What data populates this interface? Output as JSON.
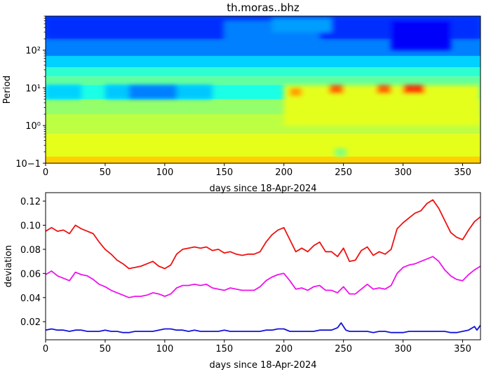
{
  "figure": {
    "title": "th.moras..bhz"
  },
  "chart_data": [
    {
      "type": "heatmap",
      "title": "th.moras..bhz",
      "xlabel": "days since 18-Apr-2024",
      "ylabel": "Period",
      "xlim": [
        0,
        365
      ],
      "ylim": [
        0.1,
        800
      ],
      "yscale": "log",
      "xticks": [
        0,
        50,
        100,
        150,
        200,
        250,
        300,
        350
      ],
      "xtick_labels": [
        "0",
        "50",
        "100",
        "150",
        "200",
        "250",
        "300",
        "350"
      ],
      "yticks": [
        0.1,
        1,
        10,
        100
      ],
      "ytick_labels": [
        "10−1",
        "10⁰",
        "10¹",
        "10²"
      ],
      "colormap": "jet",
      "bands": [
        {
          "period": [
            200,
            800
          ],
          "value": 0.2
        },
        {
          "period": [
            70,
            200
          ],
          "value": 0.25
        },
        {
          "period": [
            35,
            70
          ],
          "value": 0.33
        },
        {
          "period": [
            20,
            35
          ],
          "value": 0.42
        },
        {
          "period": [
            12,
            20
          ],
          "value": 0.47
        },
        {
          "period": [
            5,
            12
          ],
          "value": 0.4
        },
        {
          "period": [
            2,
            5
          ],
          "value": 0.52
        },
        {
          "period": [
            0.6,
            2
          ],
          "value": 0.56
        },
        {
          "period": [
            0.15,
            0.6
          ],
          "value": 0.6
        },
        {
          "period": [
            0.1,
            0.15
          ],
          "value": 0.67
        }
      ],
      "patches": [
        {
          "x": [
            0,
            365
          ],
          "period": [
            200,
            800
          ],
          "value": 0.17
        },
        {
          "x": [
            150,
            230
          ],
          "period": [
            100,
            600
          ],
          "value": 0.25
        },
        {
          "x": [
            290,
            340
          ],
          "period": [
            100,
            600
          ],
          "value": 0.12
        },
        {
          "x": [
            190,
            240
          ],
          "period": [
            300,
            700
          ],
          "value": 0.28
        },
        {
          "x": [
            50,
            140
          ],
          "period": [
            5,
            12
          ],
          "value": 0.32
        },
        {
          "x": [
            70,
            110
          ],
          "period": [
            5,
            12
          ],
          "value": 0.25
        },
        {
          "x": [
            0,
            30
          ],
          "period": [
            5,
            12
          ],
          "value": 0.33
        },
        {
          "x": [
            200,
            320
          ],
          "period": [
            5,
            12
          ],
          "value": 0.6
        },
        {
          "x": [
            200,
            365
          ],
          "period": [
            1,
            12
          ],
          "value": 0.6
        },
        {
          "x": [
            205,
            215
          ],
          "period": [
            6,
            10
          ],
          "value": 0.72
        },
        {
          "x": [
            238,
            250
          ],
          "period": [
            7,
            12
          ],
          "value": 0.78
        },
        {
          "x": [
            278,
            290
          ],
          "period": [
            7,
            12
          ],
          "value": 0.78
        },
        {
          "x": [
            300,
            318
          ],
          "period": [
            7,
            12
          ],
          "value": 0.82
        },
        {
          "x": [
            243,
            252
          ],
          "period": [
            0.15,
            0.25
          ],
          "value": 0.5
        }
      ]
    },
    {
      "type": "line",
      "xlabel": "days since 18-Apr-2024",
      "ylabel": "deviation",
      "xlim": [
        0,
        365
      ],
      "ylim": [
        0.005,
        0.127
      ],
      "xticks": [
        0,
        50,
        100,
        150,
        200,
        250,
        300,
        350
      ],
      "xtick_labels": [
        "0",
        "50",
        "100",
        "150",
        "200",
        "250",
        "300",
        "350"
      ],
      "yticks": [
        0.02,
        0.04,
        0.06,
        0.08,
        0.1,
        0.12
      ],
      "ytick_labels": [
        "0.02",
        "0.04",
        "0.06",
        "0.08",
        "0.10",
        "0.12"
      ],
      "series": [
        {
          "color": "#ee1111",
          "x": [
            0,
            5,
            10,
            15,
            20,
            25,
            30,
            35,
            40,
            45,
            50,
            55,
            60,
            65,
            70,
            75,
            80,
            85,
            90,
            95,
            100,
            105,
            110,
            115,
            120,
            125,
            130,
            135,
            140,
            145,
            150,
            155,
            160,
            165,
            170,
            175,
            180,
            185,
            190,
            195,
            200,
            205,
            210,
            215,
            220,
            225,
            230,
            235,
            240,
            245,
            250,
            255,
            260,
            265,
            270,
            275,
            280,
            285,
            290,
            295,
            300,
            305,
            310,
            315,
            320,
            325,
            330,
            335,
            340,
            345,
            350,
            355,
            360,
            365
          ],
          "y": [
            0.095,
            0.098,
            0.095,
            0.096,
            0.093,
            0.1,
            0.097,
            0.095,
            0.093,
            0.086,
            0.08,
            0.076,
            0.071,
            0.068,
            0.064,
            0.065,
            0.066,
            0.068,
            0.07,
            0.066,
            0.064,
            0.067,
            0.076,
            0.08,
            0.081,
            0.082,
            0.081,
            0.082,
            0.079,
            0.08,
            0.077,
            0.078,
            0.076,
            0.075,
            0.076,
            0.076,
            0.078,
            0.086,
            0.092,
            0.096,
            0.098,
            0.088,
            0.078,
            0.081,
            0.078,
            0.083,
            0.086,
            0.078,
            0.078,
            0.074,
            0.081,
            0.07,
            0.071,
            0.079,
            0.082,
            0.075,
            0.078,
            0.076,
            0.08,
            0.097,
            0.102,
            0.106,
            0.11,
            0.112,
            0.118,
            0.121,
            0.114,
            0.104,
            0.094,
            0.09,
            0.088,
            0.096,
            0.103,
            0.107
          ]
        },
        {
          "color": "#ee11ee",
          "x": [
            0,
            5,
            10,
            15,
            20,
            25,
            30,
            35,
            40,
            45,
            50,
            55,
            60,
            65,
            70,
            75,
            80,
            85,
            90,
            95,
            100,
            105,
            110,
            115,
            120,
            125,
            130,
            135,
            140,
            145,
            150,
            155,
            160,
            165,
            170,
            175,
            180,
            185,
            190,
            195,
            200,
            205,
            210,
            215,
            220,
            225,
            230,
            235,
            240,
            245,
            250,
            255,
            260,
            265,
            270,
            275,
            280,
            285,
            290,
            295,
            300,
            305,
            310,
            315,
            320,
            325,
            330,
            335,
            340,
            345,
            350,
            355,
            360,
            365
          ],
          "y": [
            0.059,
            0.062,
            0.058,
            0.056,
            0.054,
            0.061,
            0.059,
            0.058,
            0.055,
            0.051,
            0.049,
            0.046,
            0.044,
            0.042,
            0.04,
            0.041,
            0.041,
            0.042,
            0.044,
            0.043,
            0.041,
            0.043,
            0.048,
            0.05,
            0.05,
            0.051,
            0.05,
            0.051,
            0.048,
            0.047,
            0.046,
            0.048,
            0.047,
            0.046,
            0.046,
            0.046,
            0.049,
            0.054,
            0.057,
            0.059,
            0.06,
            0.054,
            0.047,
            0.048,
            0.046,
            0.049,
            0.05,
            0.046,
            0.046,
            0.044,
            0.049,
            0.043,
            0.043,
            0.047,
            0.051,
            0.047,
            0.048,
            0.047,
            0.05,
            0.06,
            0.065,
            0.067,
            0.068,
            0.07,
            0.072,
            0.074,
            0.07,
            0.063,
            0.058,
            0.055,
            0.054,
            0.059,
            0.063,
            0.066
          ]
        },
        {
          "color": "#1111dd",
          "x": [
            0,
            5,
            10,
            15,
            20,
            25,
            30,
            35,
            40,
            45,
            50,
            55,
            60,
            65,
            70,
            75,
            80,
            85,
            90,
            95,
            100,
            105,
            110,
            115,
            120,
            125,
            130,
            135,
            140,
            145,
            150,
            155,
            160,
            165,
            170,
            175,
            180,
            185,
            190,
            195,
            200,
            205,
            210,
            215,
            220,
            225,
            230,
            235,
            240,
            245,
            248,
            252,
            255,
            260,
            265,
            270,
            275,
            280,
            285,
            290,
            295,
            300,
            305,
            310,
            315,
            320,
            325,
            330,
            335,
            340,
            345,
            350,
            355,
            360,
            362,
            365
          ],
          "y": [
            0.013,
            0.014,
            0.013,
            0.013,
            0.012,
            0.013,
            0.013,
            0.012,
            0.012,
            0.012,
            0.013,
            0.012,
            0.012,
            0.011,
            0.011,
            0.012,
            0.012,
            0.012,
            0.012,
            0.013,
            0.014,
            0.014,
            0.013,
            0.013,
            0.012,
            0.013,
            0.012,
            0.012,
            0.012,
            0.012,
            0.013,
            0.012,
            0.012,
            0.012,
            0.012,
            0.012,
            0.012,
            0.013,
            0.013,
            0.014,
            0.014,
            0.012,
            0.012,
            0.012,
            0.012,
            0.012,
            0.013,
            0.013,
            0.013,
            0.015,
            0.019,
            0.013,
            0.012,
            0.012,
            0.012,
            0.012,
            0.011,
            0.012,
            0.012,
            0.011,
            0.011,
            0.011,
            0.012,
            0.012,
            0.012,
            0.012,
            0.012,
            0.012,
            0.012,
            0.011,
            0.011,
            0.012,
            0.013,
            0.016,
            0.013,
            0.017
          ]
        }
      ]
    }
  ]
}
